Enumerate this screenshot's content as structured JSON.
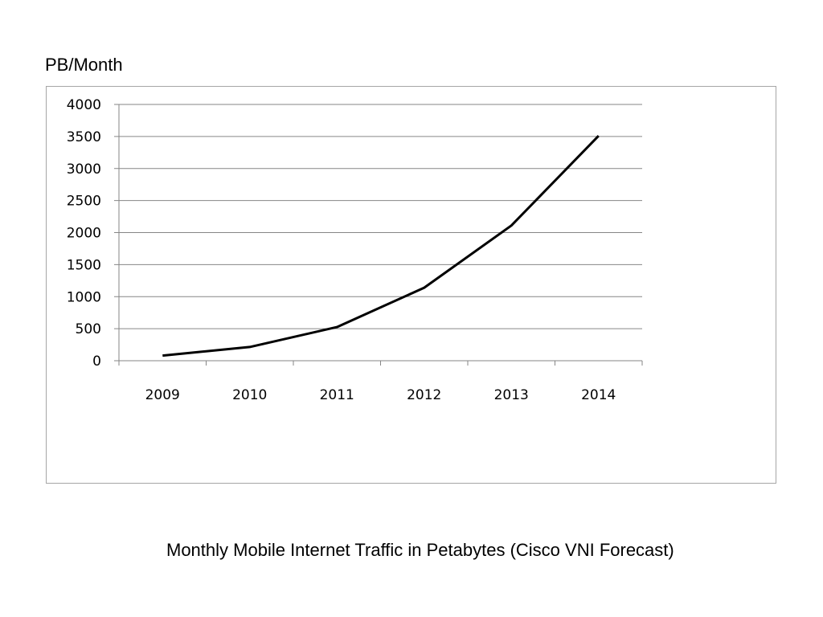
{
  "unit_label": "PB/Month",
  "caption": "Monthly Mobile Internet Traffic in Petabytes (Cisco VNI Forecast)",
  "chart_data": {
    "type": "line",
    "title": "",
    "xlabel": "",
    "ylabel": "PB/Month",
    "categories": [
      "2009",
      "2010",
      "2011",
      "2012",
      "2013",
      "2014"
    ],
    "series": [
      {
        "values": [
          80,
          215,
          525,
          1140,
          2110,
          3510
        ]
      }
    ],
    "ylim": [
      0,
      4000
    ],
    "yticks": [
      0,
      500,
      1000,
      1500,
      2000,
      2500,
      3000,
      3500,
      4000
    ],
    "grid": true,
    "legend": "none",
    "line_color": "#000000",
    "grid_color": "#868686"
  }
}
